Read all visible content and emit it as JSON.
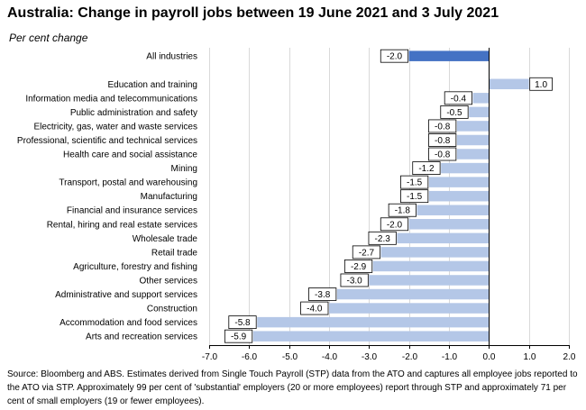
{
  "title": "Australia: Change in payroll jobs between 19 June 2021 and 3 July 2021",
  "subtitle": "Per cent change",
  "source": "Source: Bloomberg and ABS.  Estimates derived from Single Touch Payroll (STP) data from the ATO and captures all employee jobs reported to the ATO via STP.  Approximately 99 per cent of 'substantial' employers (20 or more employees) report through STP and approximately 71 per cent of small employers (19 or fewer employees).",
  "colors": {
    "highlight": "#4472c4",
    "bar": "#b4c7e7",
    "grid": "#d9d9d9",
    "axis": "#000000"
  },
  "chart_data": {
    "type": "bar",
    "orientation": "horizontal",
    "xlim": [
      -7.0,
      2.0
    ],
    "xticks": [
      "-7.0",
      "-6.0",
      "-5.0",
      "-4.0",
      "-3.0",
      "-2.0",
      "-1.0",
      "0.0",
      "1.0",
      "2.0"
    ],
    "grid": true,
    "legend": "none",
    "categories": [
      "All industries",
      "",
      "Education and training",
      "Information media and telecommunications",
      "Public administration and safety",
      "Electricity, gas, water and waste services",
      "Professional, scientific and technical services",
      "Health care and social assistance",
      "Mining",
      "Transport, postal and warehousing",
      "Manufacturing",
      "Financial and insurance services",
      "Rental, hiring and real estate services",
      "Wholesale trade",
      "Retail trade",
      "Agriculture, forestry and fishing",
      "Other services",
      "Administrative and support services",
      "Construction",
      "Accommodation and food services",
      "Arts and recreation services"
    ],
    "values": [
      -2.0,
      null,
      1.0,
      -0.4,
      -0.5,
      -0.8,
      -0.8,
      -0.8,
      -1.2,
      -1.5,
      -1.5,
      -1.8,
      -2.0,
      -2.3,
      -2.7,
      -2.9,
      -3.0,
      -3.8,
      -4.0,
      -5.8,
      -5.9
    ],
    "highlight_index": 0
  }
}
